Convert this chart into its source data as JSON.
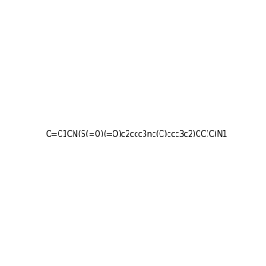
{
  "smiles": "O=C1CN(S(=O)(=O)c2ccc3nc(C)ccc3c2)CC(C)N1",
  "image_size": 300,
  "background_color": "#e8e8e8",
  "title": ""
}
